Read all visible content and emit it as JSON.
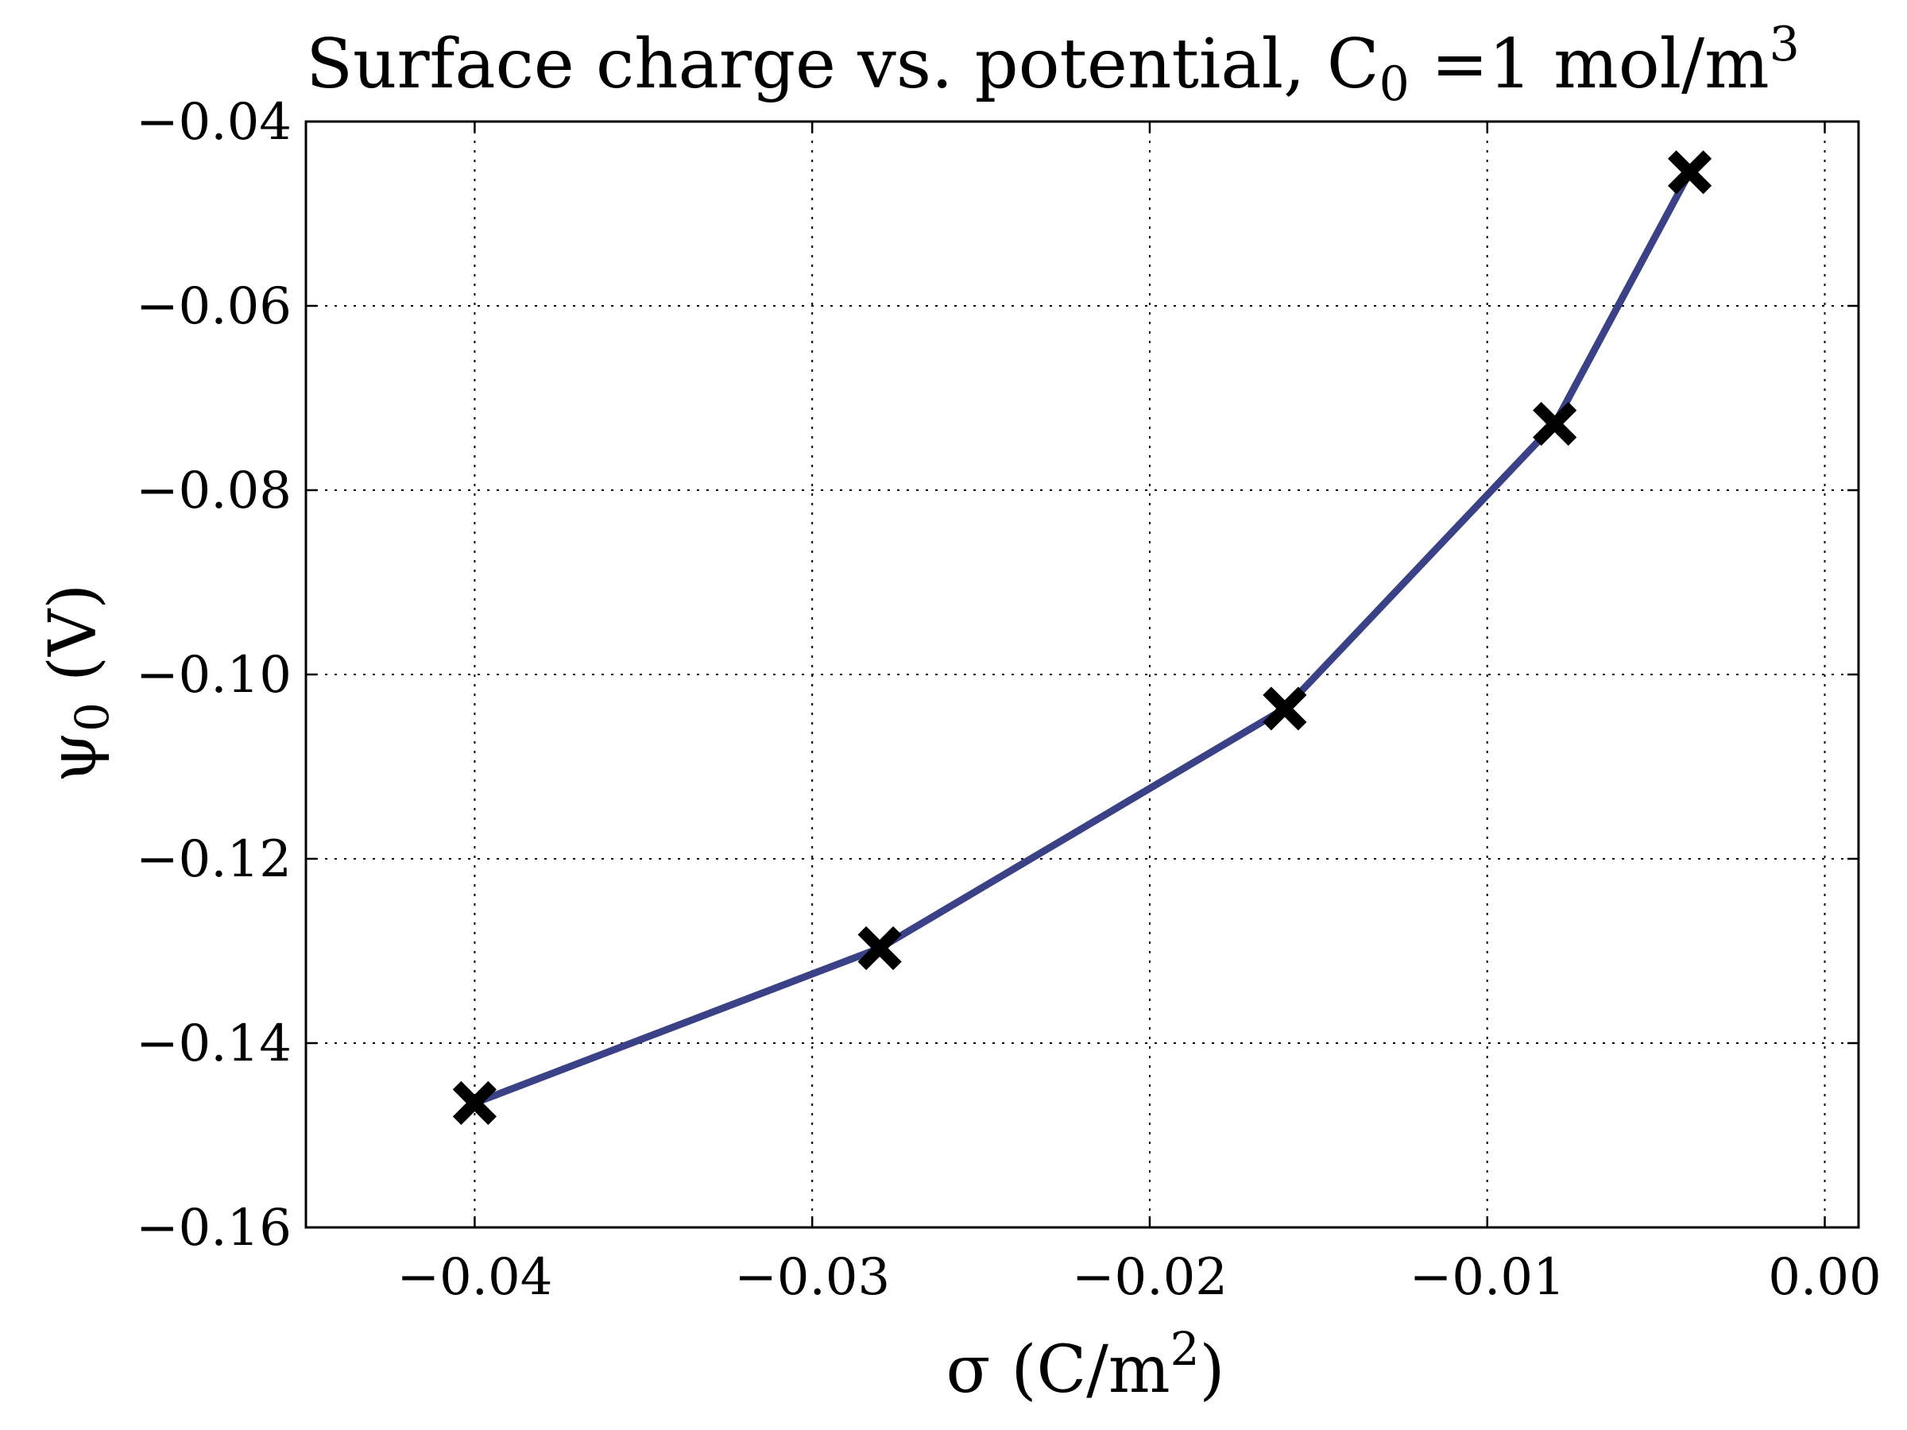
{
  "chart_data": {
    "type": "line",
    "title": "Surface charge vs. potential, C",
    "title_subscript": "0",
    "title_tail": " =1 mol/m",
    "title_superscript": "3",
    "xlabel": "σ (C/m",
    "xlabel_superscript": "2",
    "xlabel_tail": ")",
    "ylabel": "ψ",
    "ylabel_subscript": "0",
    "ylabel_tail": " (V)",
    "xlim": [
      -0.045,
      0.001
    ],
    "ylim": [
      -0.16,
      -0.04
    ],
    "xticks": [
      -0.04,
      -0.03,
      -0.02,
      -0.01,
      0.0
    ],
    "xtick_labels": [
      "−0.04",
      "−0.03",
      "−0.02",
      "−0.01",
      "0.00"
    ],
    "yticks": [
      -0.16,
      -0.14,
      -0.12,
      -0.1,
      -0.08,
      -0.06,
      -0.04
    ],
    "ytick_labels": [
      "−0.16",
      "−0.14",
      "−0.12",
      "−0.10",
      "−0.08",
      "−0.06",
      "−0.04"
    ],
    "grid": true,
    "series": [
      {
        "x": [
          -0.04,
          -0.028,
          -0.016,
          -0.008,
          -0.004
        ],
        "y": [
          -0.1465,
          -0.1297,
          -0.1037,
          -0.0728,
          -0.0455
        ],
        "line_color": "#3b4186",
        "marker": "x",
        "marker_color": "#000000"
      }
    ]
  }
}
